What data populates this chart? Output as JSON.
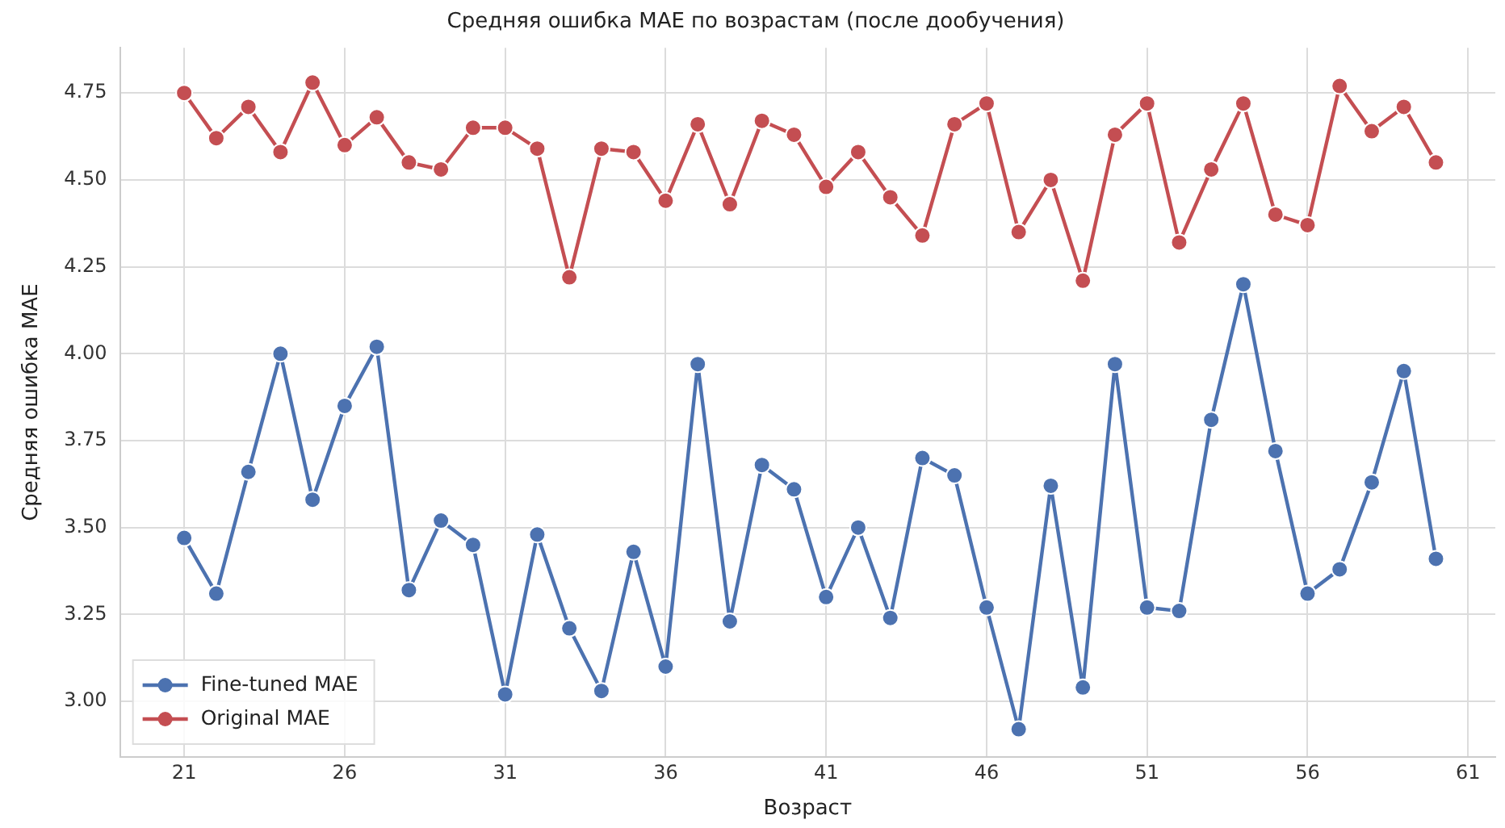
{
  "chart_data": {
    "type": "line",
    "title": "Средняя ошибка MAE по возрастам (после дообучения)",
    "xlabel": "Возраст",
    "ylabel": "Средняя ошибка MAE",
    "x": [
      21,
      22,
      23,
      24,
      25,
      26,
      27,
      28,
      29,
      30,
      31,
      32,
      33,
      34,
      35,
      36,
      37,
      38,
      39,
      40,
      41,
      42,
      43,
      44,
      45,
      46,
      47,
      48,
      49,
      50,
      51,
      52,
      53,
      54,
      55,
      56,
      57,
      58,
      59,
      60
    ],
    "series": [
      {
        "name": "Fine-tuned MAE",
        "color": "#4c72b0",
        "values": [
          3.47,
          3.31,
          3.66,
          4.0,
          3.58,
          3.85,
          4.02,
          3.32,
          3.52,
          3.45,
          3.02,
          3.48,
          3.21,
          3.03,
          3.43,
          3.1,
          3.97,
          3.23,
          3.68,
          3.61,
          3.3,
          3.5,
          3.24,
          3.7,
          3.65,
          3.27,
          2.92,
          3.62,
          3.04,
          3.97,
          3.27,
          3.26,
          3.81,
          4.2,
          3.72,
          3.31,
          3.38,
          3.63,
          3.95,
          3.41
        ]
      },
      {
        "name": "Original MAE",
        "color": "#c44e52",
        "values": [
          4.75,
          4.62,
          4.71,
          4.58,
          4.78,
          4.6,
          4.68,
          4.55,
          4.53,
          4.65,
          4.65,
          4.59,
          4.22,
          4.59,
          4.58,
          4.44,
          4.66,
          4.43,
          4.67,
          4.63,
          4.48,
          4.58,
          4.45,
          4.34,
          4.66,
          4.72,
          4.35,
          4.5,
          4.21,
          4.63,
          4.72,
          4.32,
          4.53,
          4.72,
          4.4,
          4.37,
          4.77,
          4.64,
          4.71,
          4.55
        ]
      }
    ],
    "xlim": [
      19,
      61.85
    ],
    "xticks": [
      21,
      26,
      31,
      36,
      41,
      46,
      51,
      56,
      61
    ],
    "ylim": [
      2.84,
      4.88
    ],
    "yticks": [
      {
        "value": 3,
        "label": "3.00"
      },
      {
        "value": 3.25,
        "label": "3.25"
      },
      {
        "value": 3.5,
        "label": "3.50"
      },
      {
        "value": 3.75,
        "label": "3.75"
      },
      {
        "value": 4,
        "label": "4.00"
      },
      {
        "value": 4.25,
        "label": "4.25"
      },
      {
        "value": 4.5,
        "label": "4.50"
      },
      {
        "value": 4.75,
        "label": "4.75"
      }
    ],
    "grid": true,
    "legend": "bottom left",
    "marker": "circle",
    "line_style": "solid"
  }
}
